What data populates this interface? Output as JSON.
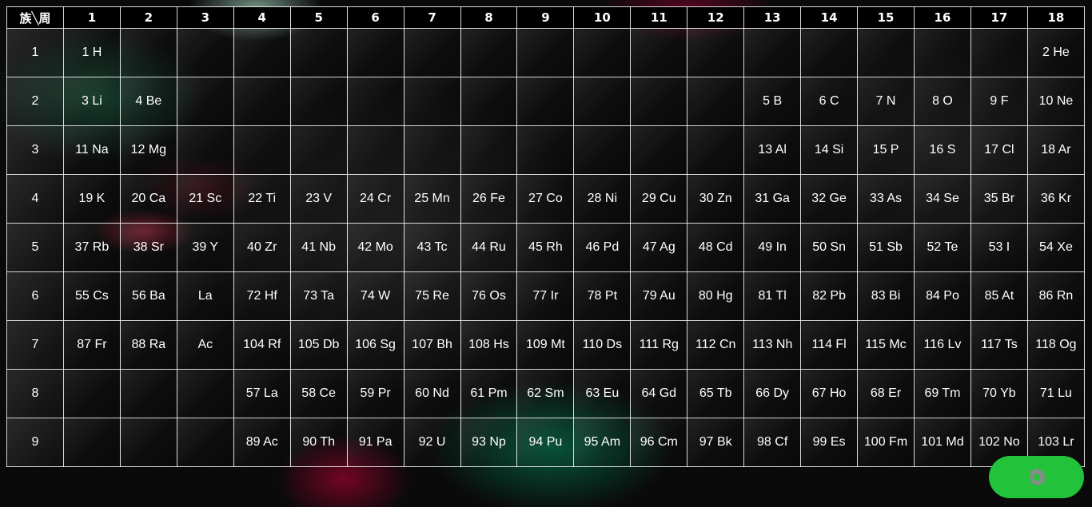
{
  "header": {
    "corner_label": "族╲周",
    "groups": [
      "1",
      "2",
      "3",
      "4",
      "5",
      "6",
      "7",
      "8",
      "9",
      "10",
      "11",
      "12",
      "13",
      "14",
      "15",
      "16",
      "17",
      "18"
    ]
  },
  "rows": [
    {
      "label": "1",
      "cells": [
        "1 H",
        "",
        "",
        "",
        "",
        "",
        "",
        "",
        "",
        "",
        "",
        "",
        "",
        "",
        "",
        "",
        "",
        "2 He"
      ]
    },
    {
      "label": "2",
      "cells": [
        "3 Li",
        "4 Be",
        "",
        "",
        "",
        "",
        "",
        "",
        "",
        "",
        "",
        "",
        "5 B",
        "6 C",
        "7 N",
        "8 O",
        "9 F",
        "10 Ne"
      ]
    },
    {
      "label": "3",
      "cells": [
        "11 Na",
        "12 Mg",
        "",
        "",
        "",
        "",
        "",
        "",
        "",
        "",
        "",
        "",
        "13 Al",
        "14 Si",
        "15 P",
        "16 S",
        "17 Cl",
        "18 Ar"
      ]
    },
    {
      "label": "4",
      "cells": [
        "19 K",
        "20 Ca",
        "21 Sc",
        "22 Ti",
        "23 V",
        "24 Cr",
        "25 Mn",
        "26 Fe",
        "27 Co",
        "28 Ni",
        "29 Cu",
        "30 Zn",
        "31 Ga",
        "32 Ge",
        "33 As",
        "34 Se",
        "35 Br",
        "36 Kr"
      ]
    },
    {
      "label": "5",
      "cells": [
        "37 Rb",
        "38 Sr",
        "39 Y",
        "40 Zr",
        "41 Nb",
        "42 Mo",
        "43 Tc",
        "44 Ru",
        "45 Rh",
        "46 Pd",
        "47 Ag",
        "48 Cd",
        "49 In",
        "50 Sn",
        "51 Sb",
        "52 Te",
        "53 I",
        "54 Xe"
      ]
    },
    {
      "label": "6",
      "cells": [
        "55 Cs",
        "56 Ba",
        "La",
        "72 Hf",
        "73 Ta",
        "74 W",
        "75 Re",
        "76 Os",
        "77 Ir",
        "78 Pt",
        "79 Au",
        "80 Hg",
        "81 Tl",
        "82 Pb",
        "83 Bi",
        "84 Po",
        "85 At",
        "86 Rn"
      ]
    },
    {
      "label": "7",
      "cells": [
        "87 Fr",
        "88 Ra",
        "Ac",
        "104 Rf",
        "105 Db",
        "106 Sg",
        "107 Bh",
        "108 Hs",
        "109 Mt",
        "110 Ds",
        "111 Rg",
        "112 Cn",
        "113 Nh",
        "114 Fl",
        "115 Mc",
        "116 Lv",
        "117 Ts",
        "118 Og"
      ]
    },
    {
      "label": "8",
      "cells": [
        "",
        "",
        "",
        "57 La",
        "58 Ce",
        "59 Pr",
        "60 Nd",
        "61 Pm",
        "62 Sm",
        "63 Eu",
        "64 Gd",
        "65 Tb",
        "66 Dy",
        "67 Ho",
        "68 Er",
        "69 Tm",
        "70 Yb",
        "71 Lu"
      ]
    },
    {
      "label": "9",
      "cells": [
        "",
        "",
        "",
        "89 Ac",
        "90 Th",
        "91 Pa",
        "92 U",
        "93 Np",
        "94 Pu",
        "95 Am",
        "96 Cm",
        "97 Bk",
        "98 Cf",
        "99 Es",
        "100 Fm",
        "101 Md",
        "102 No",
        "103 Lr"
      ]
    }
  ],
  "settings_button": {
    "icon": "gear-icon",
    "color": "#22c23a",
    "icon_color": "#8a8a8a"
  }
}
